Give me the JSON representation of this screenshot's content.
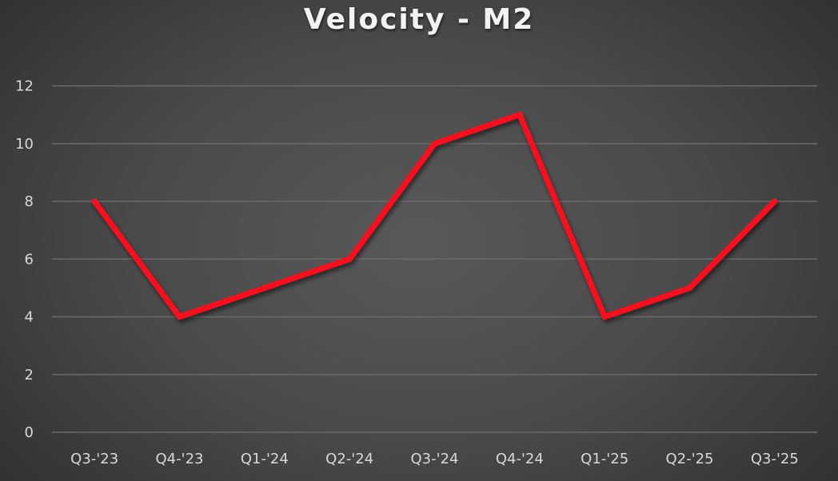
{
  "chart_data": {
    "type": "line",
    "title": "Velocity - M2",
    "xlabel": "",
    "ylabel": "",
    "categories": [
      "Q3-'23",
      "Q4-'23",
      "Q1-'24",
      "Q2-'24",
      "Q3-'24",
      "Q4-'24",
      "Q1-'25",
      "Q2-'25",
      "Q3-'25"
    ],
    "series": [
      {
        "name": "Velocity",
        "color": "#ff0d1f",
        "values": [
          8,
          4,
          5,
          6,
          10,
          11,
          4,
          5,
          8
        ]
      }
    ],
    "ylim": [
      0,
      12
    ],
    "yticks": [
      0,
      2,
      4,
      6,
      8,
      10,
      12
    ],
    "grid": true,
    "legend": "none"
  },
  "colors": {
    "background": "#4a4a4a",
    "gridline": "#6a6a6a",
    "line": "#ff0d1f",
    "text": "#d9d9d9",
    "title": "#f2f2f2"
  }
}
